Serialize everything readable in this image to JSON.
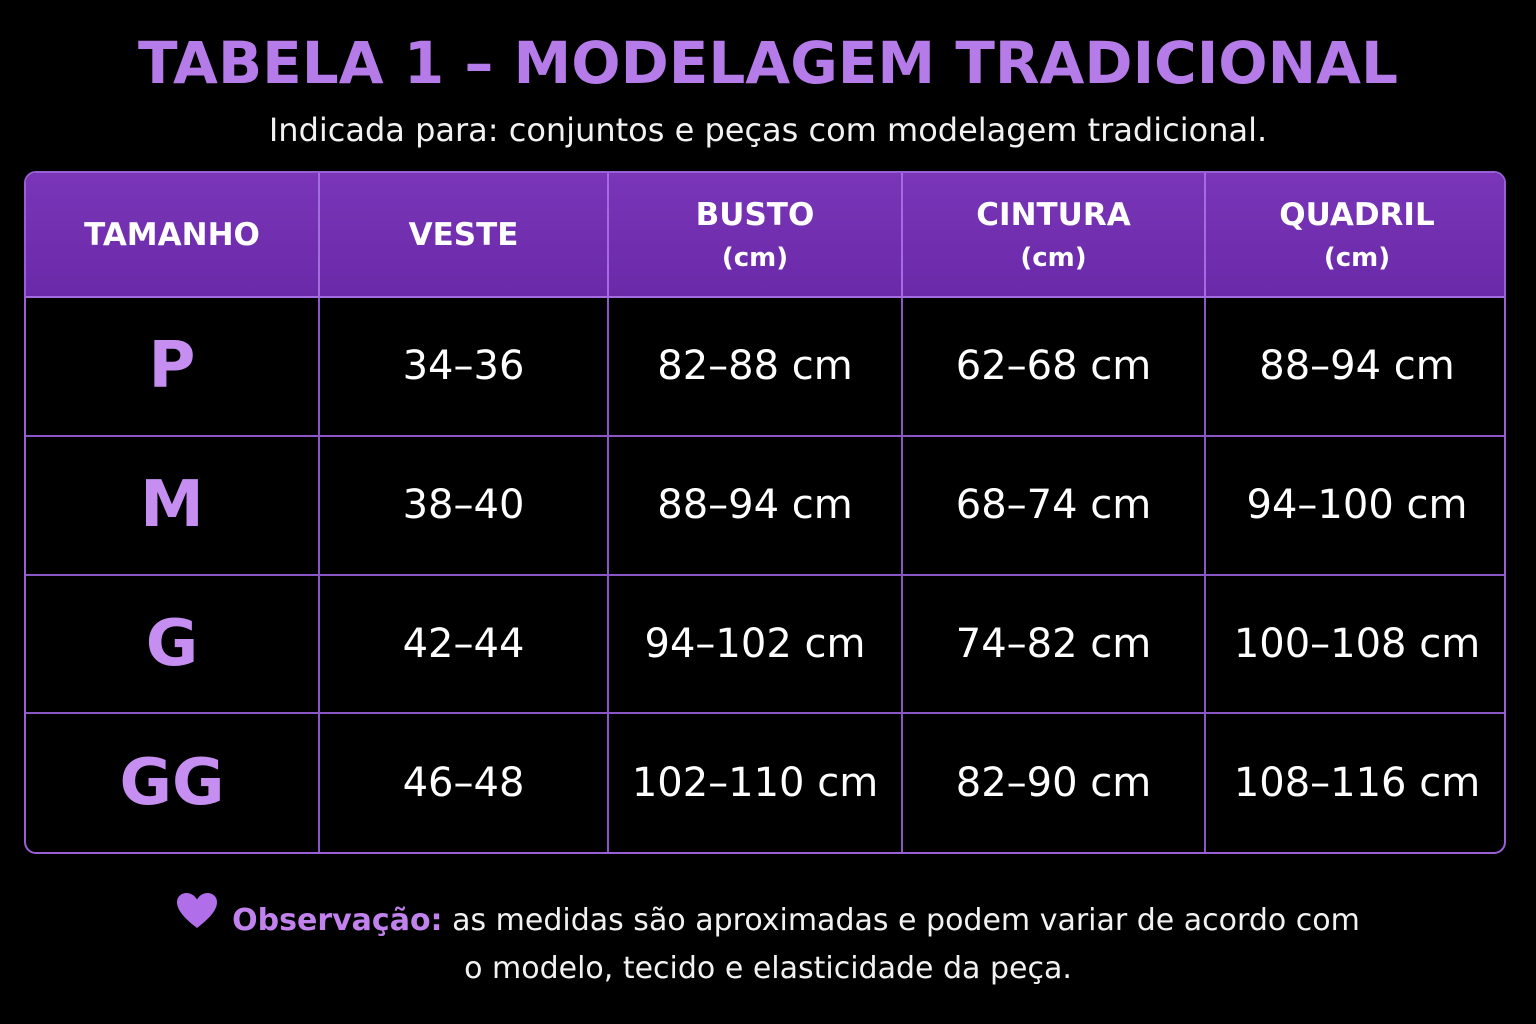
{
  "title": "TABELA 1 – MODELAGEM TRADICIONAL",
  "subtitle": "Indicada para: conjuntos e peças com modelagem tradicional.",
  "accent_color": "#b57be8",
  "header_color": "#7a35b8",
  "table": {
    "headers": [
      {
        "label": "TAMANHO",
        "unit": ""
      },
      {
        "label": "VESTE",
        "unit": ""
      },
      {
        "label": "BUSTO",
        "unit": "(cm)"
      },
      {
        "label": "CINTURA",
        "unit": "(cm)"
      },
      {
        "label": "QUADRIL",
        "unit": "(cm)"
      }
    ],
    "rows": [
      {
        "size": "P",
        "veste": "34–36",
        "busto": "82–88 cm",
        "cintura": "62–68 cm",
        "quadril": "88–94 cm"
      },
      {
        "size": "M",
        "veste": "38–40",
        "busto": "88–94 cm",
        "cintura": "68–74 cm",
        "quadril": "94–100 cm"
      },
      {
        "size": "G",
        "veste": "42–44",
        "busto": "94–102 cm",
        "cintura": "74–82 cm",
        "quadril": "100–108 cm"
      },
      {
        "size": "GG",
        "veste": "46–48",
        "busto": "102–110 cm",
        "cintura": "82–90 cm",
        "quadril": "108–116 cm"
      }
    ]
  },
  "note": {
    "icon": "heart-icon",
    "label": "Observação:",
    "text_line1": "as medidas são aproximadas e podem variar de acordo com",
    "text_line2": "o modelo, tecido e elasticidade da peça."
  }
}
